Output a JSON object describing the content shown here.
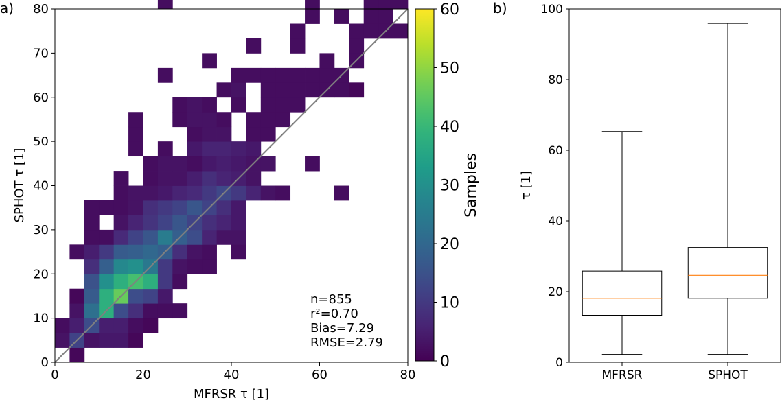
{
  "panels": {
    "a": "a)",
    "b": "b)"
  },
  "chart_data": [
    {
      "type": "heatmap",
      "xlabel": "MFRSR τ [1]",
      "ylabel": "SPHOT τ [1]",
      "xlim": [
        0,
        80
      ],
      "ylim": [
        0,
        80
      ],
      "bin_width": 3.333,
      "xticks": [
        0,
        20,
        40,
        60,
        80
      ],
      "yticks": [
        0,
        10,
        20,
        30,
        40,
        50,
        60,
        70,
        80
      ],
      "one_to_one_line": true,
      "colormap": "viridis",
      "colorbar": {
        "label": "Samples",
        "range": [
          0,
          60
        ],
        "ticks": [
          0,
          10,
          20,
          30,
          40,
          50,
          60
        ]
      },
      "stats": [
        "n=855",
        "r²=0.70",
        "Bias=7.29",
        "RMSE=2.79"
      ],
      "cells": [
        [
          1,
          0,
          1
        ],
        [
          0,
          1,
          3
        ],
        [
          1,
          1,
          12
        ],
        [
          2,
          1,
          3
        ],
        [
          3,
          1,
          4
        ],
        [
          4,
          1,
          4
        ],
        [
          5,
          1,
          1
        ],
        [
          0,
          2,
          2
        ],
        [
          1,
          2,
          5
        ],
        [
          2,
          2,
          14
        ],
        [
          3,
          2,
          5
        ],
        [
          4,
          2,
          5
        ],
        [
          5,
          2,
          2
        ],
        [
          6,
          2,
          1
        ],
        [
          1,
          3,
          3
        ],
        [
          2,
          3,
          22
        ],
        [
          3,
          3,
          38
        ],
        [
          4,
          3,
          14
        ],
        [
          5,
          3,
          8
        ],
        [
          6,
          3,
          2
        ],
        [
          7,
          3,
          2
        ],
        [
          8,
          3,
          2
        ],
        [
          1,
          4,
          1
        ],
        [
          2,
          4,
          17
        ],
        [
          3,
          4,
          38
        ],
        [
          4,
          4,
          46
        ],
        [
          5,
          4,
          14
        ],
        [
          6,
          4,
          12
        ],
        [
          7,
          4,
          4
        ],
        [
          2,
          5,
          15
        ],
        [
          3,
          5,
          30
        ],
        [
          4,
          5,
          38
        ],
        [
          5,
          5,
          42
        ],
        [
          6,
          5,
          38
        ],
        [
          7,
          5,
          10
        ],
        [
          8,
          5,
          2
        ],
        [
          2,
          6,
          8
        ],
        [
          3,
          6,
          18
        ],
        [
          4,
          6,
          28
        ],
        [
          5,
          6,
          30
        ],
        [
          6,
          6,
          24
        ],
        [
          7,
          6,
          10
        ],
        [
          8,
          6,
          3
        ],
        [
          9,
          6,
          2
        ],
        [
          10,
          6,
          2
        ],
        [
          1,
          7,
          2
        ],
        [
          2,
          7,
          5
        ],
        [
          3,
          7,
          10
        ],
        [
          4,
          7,
          17
        ],
        [
          5,
          7,
          18
        ],
        [
          6,
          7,
          20
        ],
        [
          7,
          7,
          18
        ],
        [
          8,
          7,
          8
        ],
        [
          9,
          7,
          3
        ],
        [
          10,
          7,
          2
        ],
        [
          12,
          7,
          2
        ],
        [
          2,
          8,
          2
        ],
        [
          3,
          8,
          2
        ],
        [
          4,
          8,
          7
        ],
        [
          5,
          8,
          12
        ],
        [
          6,
          8,
          16
        ],
        [
          7,
          8,
          25
        ],
        [
          8,
          8,
          18
        ],
        [
          9,
          8,
          14
        ],
        [
          10,
          8,
          6
        ],
        [
          11,
          8,
          3
        ],
        [
          12,
          8,
          3
        ],
        [
          2,
          9,
          2
        ],
        [
          4,
          9,
          3
        ],
        [
          5,
          9,
          6
        ],
        [
          6,
          9,
          9
        ],
        [
          7,
          9,
          12
        ],
        [
          8,
          9,
          16
        ],
        [
          9,
          9,
          12
        ],
        [
          10,
          9,
          8
        ],
        [
          11,
          9,
          6
        ],
        [
          12,
          9,
          4
        ],
        [
          2,
          10,
          2
        ],
        [
          3,
          10,
          2
        ],
        [
          4,
          10,
          2
        ],
        [
          5,
          10,
          3
        ],
        [
          6,
          10,
          8
        ],
        [
          7,
          10,
          10
        ],
        [
          8,
          10,
          12
        ],
        [
          9,
          10,
          16
        ],
        [
          10,
          10,
          12
        ],
        [
          11,
          10,
          8
        ],
        [
          12,
          10,
          4
        ],
        [
          4,
          11,
          2
        ],
        [
          5,
          11,
          3
        ],
        [
          6,
          11,
          3
        ],
        [
          7,
          11,
          4
        ],
        [
          8,
          11,
          6
        ],
        [
          9,
          11,
          7
        ],
        [
          10,
          11,
          10
        ],
        [
          11,
          11,
          13
        ],
        [
          12,
          11,
          10
        ],
        [
          13,
          11,
          6
        ],
        [
          14,
          11,
          3
        ],
        [
          15,
          11,
          2
        ],
        [
          19,
          11,
          2
        ],
        [
          4,
          12,
          2
        ],
        [
          6,
          12,
          2
        ],
        [
          7,
          12,
          3
        ],
        [
          8,
          12,
          3
        ],
        [
          9,
          12,
          5
        ],
        [
          10,
          12,
          8
        ],
        [
          11,
          12,
          6
        ],
        [
          12,
          12,
          5
        ],
        [
          13,
          12,
          3
        ],
        [
          6,
          13,
          2
        ],
        [
          7,
          13,
          3
        ],
        [
          8,
          13,
          3
        ],
        [
          9,
          13,
          2
        ],
        [
          10,
          13,
          4
        ],
        [
          11,
          13,
          5
        ],
        [
          12,
          13,
          4
        ],
        [
          13,
          13,
          3
        ],
        [
          14,
          13,
          3
        ],
        [
          17,
          13,
          2
        ],
        [
          5,
          14,
          2
        ],
        [
          7,
          14,
          2
        ],
        [
          9,
          14,
          4
        ],
        [
          10,
          14,
          6
        ],
        [
          11,
          14,
          6
        ],
        [
          12,
          14,
          5
        ],
        [
          13,
          14,
          4
        ],
        [
          5,
          15,
          2
        ],
        [
          9,
          15,
          2
        ],
        [
          10,
          15,
          3
        ],
        [
          11,
          15,
          3
        ],
        [
          13,
          15,
          2
        ],
        [
          14,
          15,
          2
        ],
        [
          5,
          16,
          2
        ],
        [
          8,
          16,
          2
        ],
        [
          9,
          16,
          3
        ],
        [
          10,
          16,
          3
        ],
        [
          11,
          16,
          2
        ],
        [
          13,
          16,
          2
        ],
        [
          14,
          16,
          2
        ],
        [
          15,
          16,
          2
        ],
        [
          8,
          17,
          2
        ],
        [
          9,
          17,
          3
        ],
        [
          10,
          17,
          2
        ],
        [
          12,
          17,
          2
        ],
        [
          14,
          17,
          2
        ],
        [
          15,
          17,
          2
        ],
        [
          16,
          17,
          2
        ],
        [
          11,
          18,
          2
        ],
        [
          12,
          18,
          3
        ],
        [
          14,
          18,
          2
        ],
        [
          15,
          18,
          2
        ],
        [
          16,
          18,
          2
        ],
        [
          17,
          18,
          2
        ],
        [
          18,
          18,
          2
        ],
        [
          19,
          18,
          2
        ],
        [
          20,
          18,
          1
        ],
        [
          7,
          19,
          2
        ],
        [
          12,
          19,
          2
        ],
        [
          13,
          19,
          2
        ],
        [
          14,
          19,
          2
        ],
        [
          15,
          19,
          2
        ],
        [
          16,
          19,
          2
        ],
        [
          17,
          19,
          2
        ],
        [
          18,
          19,
          2
        ],
        [
          19,
          19,
          2
        ],
        [
          10,
          20,
          2
        ],
        [
          18,
          20,
          2
        ],
        [
          20,
          20,
          2
        ],
        [
          13,
          21,
          2
        ],
        [
          16,
          21,
          2
        ],
        [
          20,
          21,
          2
        ],
        [
          16,
          22,
          2
        ],
        [
          20,
          22,
          2
        ],
        [
          21,
          22,
          2
        ],
        [
          22,
          22,
          2
        ],
        [
          23,
          22,
          2
        ],
        [
          17,
          23,
          2
        ],
        [
          19,
          23,
          2
        ],
        [
          21,
          23,
          2
        ],
        [
          22,
          23,
          2
        ],
        [
          7,
          24,
          2
        ],
        [
          17,
          24,
          2
        ],
        [
          21,
          24,
          2
        ],
        [
          22,
          24,
          2
        ],
        [
          23,
          24,
          2
        ]
      ]
    },
    {
      "type": "box",
      "ylabel": "τ [1]",
      "ylim": [
        0,
        100
      ],
      "yticks": [
        0,
        20,
        40,
        60,
        80,
        100
      ],
      "categories": [
        "MFRSR",
        "SPHOT"
      ],
      "boxes": [
        {
          "name": "MFRSR",
          "whisker_low": 2.2,
          "q1": 13.3,
          "median": 18.1,
          "q3": 25.8,
          "whisker_high": 65.3
        },
        {
          "name": "SPHOT",
          "whisker_low": 2.2,
          "q1": 18.1,
          "median": 24.6,
          "q3": 32.5,
          "whisker_high": 95.9
        }
      ],
      "median_color": "#ff7f0e"
    }
  ]
}
